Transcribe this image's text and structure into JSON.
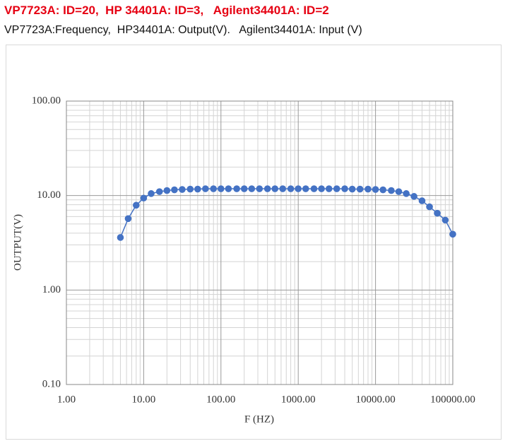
{
  "header": {
    "title": "VP7723A: ID=20,  HP 34401A: ID=3,   Agilent34401A: ID=2",
    "subtitle": "VP7723A:Frequency,  HP34401A: Output(V).   Agilent34401A: Input (V)"
  },
  "chart_data": {
    "type": "scatter",
    "x_label": "F (HZ)",
    "y_label": "OUTPUT(V)",
    "x": [
      5,
      6.3,
      8,
      10,
      12.5,
      16,
      20,
      25,
      31.5,
      40,
      50,
      63,
      80,
      100,
      125,
      160,
      200,
      250,
      315,
      400,
      500,
      630,
      800,
      1000,
      1250,
      1600,
      2000,
      2500,
      3150,
      4000,
      5000,
      6300,
      8000,
      10000,
      12500,
      16000,
      20000,
      25000,
      31500,
      40000,
      50000,
      63000,
      80000,
      100000
    ],
    "series": [
      {
        "name": "OUTPUT(V)",
        "color": "#4472c4",
        "values": [
          3.6,
          5.7,
          7.9,
          9.4,
          10.5,
          11.0,
          11.3,
          11.5,
          11.6,
          11.7,
          11.7,
          11.8,
          11.8,
          11.8,
          11.8,
          11.8,
          11.8,
          11.8,
          11.8,
          11.8,
          11.8,
          11.8,
          11.8,
          11.8,
          11.8,
          11.8,
          11.8,
          11.8,
          11.8,
          11.8,
          11.7,
          11.7,
          11.7,
          11.6,
          11.5,
          11.3,
          11.0,
          10.5,
          9.8,
          8.8,
          7.6,
          6.5,
          5.5,
          3.9
        ]
      }
    ],
    "x_log": true,
    "y_log": true,
    "xlim": [
      1,
      100000
    ],
    "ylim": [
      0.1,
      100
    ],
    "xticks": [
      {
        "value": 1,
        "label": "1.00"
      },
      {
        "value": 10,
        "label": "10.00"
      },
      {
        "value": 100,
        "label": "100.00"
      },
      {
        "value": 1000,
        "label": "1000.00"
      },
      {
        "value": 10000,
        "label": "10000.00"
      },
      {
        "value": 100000,
        "label": "100000.00"
      }
    ],
    "yticks": [
      {
        "value": 0.1,
        "label": "0.10"
      },
      {
        "value": 1,
        "label": "1.00"
      },
      {
        "value": 10,
        "label": "10.00"
      },
      {
        "value": 100,
        "label": "100.00"
      }
    ],
    "grid": true,
    "minor_grid": true
  }
}
